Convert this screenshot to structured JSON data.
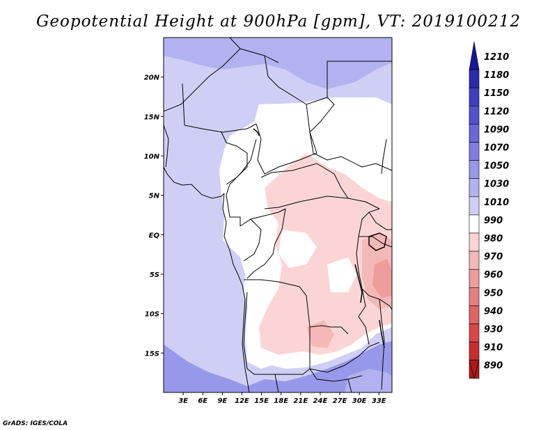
{
  "title": "Geopotential Height at 900hPa [gpm], VT: 2019100212",
  "credit": "GrADS: IGES/COLA",
  "map": {
    "lon_range": [
      0,
      35
    ],
    "lat_range": [
      -20,
      25
    ],
    "lat_ticks": [
      {
        "value": 20,
        "label": "20N"
      },
      {
        "value": 15,
        "label": "15N"
      },
      {
        "value": 10,
        "label": "10N"
      },
      {
        "value": 5,
        "label": "5N"
      },
      {
        "value": 0,
        "label": "EQ"
      },
      {
        "value": -5,
        "label": "5S"
      },
      {
        "value": -10,
        "label": "10S"
      },
      {
        "value": -15,
        "label": "15S"
      }
    ],
    "lon_ticks": [
      {
        "value": 3,
        "label": "3E"
      },
      {
        "value": 6,
        "label": "6E"
      },
      {
        "value": 9,
        "label": "9E"
      },
      {
        "value": 12,
        "label": "12E"
      },
      {
        "value": 15,
        "label": "15E"
      },
      {
        "value": 18,
        "label": "18E"
      },
      {
        "value": 21,
        "label": "21E"
      },
      {
        "value": 24,
        "label": "24E"
      },
      {
        "value": 27,
        "label": "27E"
      },
      {
        "value": 30,
        "label": "30E"
      },
      {
        "value": 33,
        "label": "33E"
      }
    ]
  },
  "colorbar": {
    "levels": [
      "1210",
      "1180",
      "1150",
      "1120",
      "1090",
      "1070",
      "1050",
      "1030",
      "1010",
      "990",
      "980",
      "970",
      "960",
      "950",
      "940",
      "930",
      "910",
      "890"
    ],
    "colors": [
      "#16169a",
      "#2a2aae",
      "#3e3ec0",
      "#5252cc",
      "#6868d8",
      "#7e7ee2",
      "#9898ea",
      "#b2b2f0",
      "#cfcff6",
      "#ffffff",
      "#fbd5d5",
      "#f5b8b8",
      "#ee9c9c",
      "#e68080",
      "#df6464",
      "#d84848",
      "#c82e2e",
      "#b01818"
    ]
  },
  "field_colors": {
    "ocean": "#cfcff6",
    "north_high": "#b2b2f0",
    "south_high": "#9898ea",
    "land_neutral": "#ffffff",
    "low_light": "#fbd5d5",
    "low_mid": "#f5b8b8",
    "low_deep": "#ee9c9c"
  }
}
